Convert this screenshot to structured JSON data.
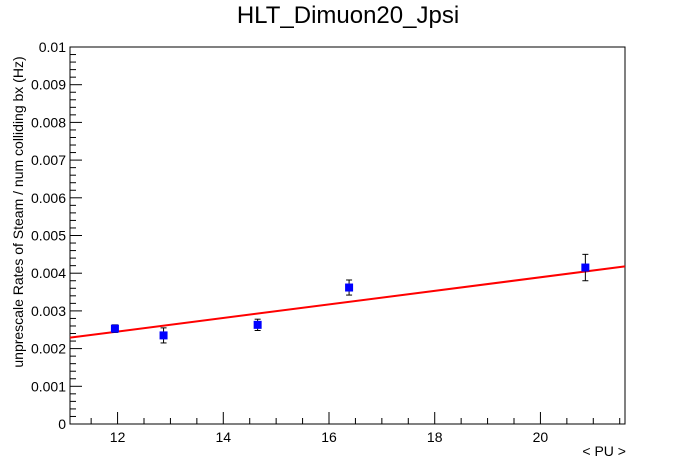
{
  "chart_data": {
    "type": "scatter",
    "title": "HLT_Dimuon20_Jpsi",
    "xlabel": "< PU >",
    "ylabel": "unprescale Rates of Steam / num colliding bx (Hz)",
    "xlim": [
      11.1,
      21.6
    ],
    "ylim": [
      0,
      0.01
    ],
    "x_ticks": [
      12,
      14,
      16,
      18,
      20
    ],
    "x_tick_labels": [
      "12",
      "14",
      "16",
      "18",
      "20"
    ],
    "y_ticks": [
      0,
      0.001,
      0.002,
      0.003,
      0.004,
      0.005,
      0.006,
      0.007,
      0.008,
      0.009,
      0.01
    ],
    "y_tick_labels": [
      "0",
      "0.001",
      "0.002",
      "0.003",
      "0.004",
      "0.005",
      "0.006",
      "0.007",
      "0.008",
      "0.009",
      "0.01"
    ],
    "grid": false,
    "series": [
      {
        "type": "scatter",
        "color": "#0000ff",
        "points": [
          {
            "x": 11.95,
            "y": 0.00253,
            "err": 0.0001
          },
          {
            "x": 12.87,
            "y": 0.00235,
            "err": 0.0002
          },
          {
            "x": 14.65,
            "y": 0.00263,
            "err": 0.00015
          },
          {
            "x": 16.38,
            "y": 0.00362,
            "err": 0.0002
          },
          {
            "x": 20.85,
            "y": 0.00415,
            "err": 0.00035
          }
        ]
      },
      {
        "type": "line",
        "color": "#ff0000",
        "points": [
          {
            "x": 11.1,
            "y": 0.00229
          },
          {
            "x": 21.6,
            "y": 0.00418
          }
        ]
      }
    ]
  }
}
